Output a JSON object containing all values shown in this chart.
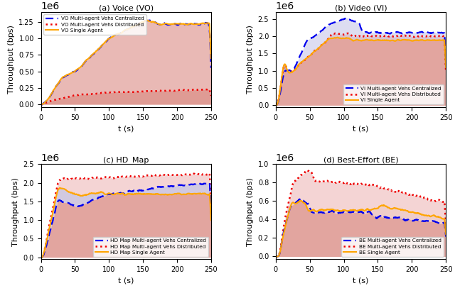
{
  "title_a": "(a) Voice (VO)",
  "title_b": "(b) Video (VI)",
  "title_c": "(c) HD_Map",
  "title_d": "(d) Best-Effort (BE)",
  "xlabel": "t (s)",
  "ylabel": "Throughput (bps)",
  "color_central": "#0000EE",
  "color_dist": "#EE0000",
  "color_single": "#FFA500",
  "fill_dark": "#c0392b",
  "fill_light_blue": "#aaaadd",
  "fill_light_pink": "#e8a0a0",
  "fill_orange": "#e8b080",
  "fill_purple": "#9988cc",
  "fill_alpha_dark": 0.45,
  "fill_alpha_light": 0.35,
  "legends": {
    "a": [
      "VO Multi-agent Vehs Centralized",
      "VO Multi-agent Vehs Distributed",
      "VO Single Agent"
    ],
    "b": [
      "VI Multi-agent Vehs Centralized",
      "VI Multi-agent Vehs Distributed",
      "VI Single Agent"
    ],
    "c": [
      "HD Map Multi-agent Vehs Centralized",
      "HD Map Multi-agent Vehs Distributed",
      "HD Map Single Agent"
    ],
    "d": [
      "BE Multi-agent Vehs Centralized",
      "BE Multi-agent Vehs Distributed",
      "BE Single Agent"
    ]
  },
  "ylim_a": [
    -40000.0,
    1400000.0
  ],
  "ylim_b": [
    -50000.0,
    2700000.0
  ],
  "ylim_c": [
    -50000.0,
    2500000.0
  ],
  "ylim_d": [
    -30000,
    1000000
  ]
}
